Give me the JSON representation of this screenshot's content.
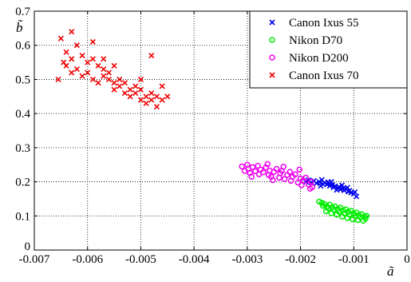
{
  "chart_data": {
    "type": "scatter",
    "title": "",
    "xlabel": "ã",
    "ylabel": "b̃",
    "xlim": [
      -0.007,
      0
    ],
    "ylim": [
      0,
      0.7
    ],
    "xticks": [
      -0.007,
      -0.006,
      -0.005,
      -0.004,
      -0.003,
      -0.002,
      -0.001,
      0
    ],
    "xtick_labels": [
      "-0.007",
      "-0.006",
      "-0.005",
      "-0.004",
      "-0.003",
      "-0.002",
      "-0.001",
      "0"
    ],
    "yticks": [
      0,
      0.1,
      0.2,
      0.3,
      0.4,
      0.5,
      0.6,
      0.7
    ],
    "ytick_labels": [
      "0",
      "0.1",
      "0.2",
      "0.3",
      "0.4",
      "0.5",
      "0.6",
      "0.7"
    ],
    "grid": true,
    "legend_position": "top-right",
    "series": [
      {
        "name": "Canon Ixus 55",
        "marker": "x",
        "color": "#0000ee",
        "points": [
          [
            -0.0019,
            0.2
          ],
          [
            -0.00185,
            0.205
          ],
          [
            -0.0018,
            0.198
          ],
          [
            -0.00175,
            0.203
          ],
          [
            -0.0017,
            0.196
          ],
          [
            -0.00165,
            0.2
          ],
          [
            -0.0016,
            0.206
          ],
          [
            -0.00158,
            0.193
          ],
          [
            -0.00155,
            0.197
          ],
          [
            -0.0015,
            0.192
          ],
          [
            -0.00148,
            0.199
          ],
          [
            -0.00145,
            0.188
          ],
          [
            -0.0014,
            0.191
          ],
          [
            -0.00138,
            0.184
          ],
          [
            -0.00135,
            0.187
          ],
          [
            -0.0013,
            0.182
          ],
          [
            -0.00128,
            0.185
          ],
          [
            -0.00125,
            0.178
          ],
          [
            -0.0012,
            0.18
          ],
          [
            -0.00118,
            0.175
          ],
          [
            -0.00115,
            0.179
          ],
          [
            -0.0011,
            0.171
          ],
          [
            -0.00108,
            0.174
          ],
          [
            -0.00105,
            0.168
          ],
          [
            -0.001,
            0.165
          ],
          [
            -0.00098,
            0.17
          ],
          [
            -0.00095,
            0.157
          ],
          [
            -0.00142,
            0.2
          ],
          [
            -0.00162,
            0.188
          ],
          [
            -0.00122,
            0.19
          ],
          [
            -0.00112,
            0.183
          ],
          [
            -0.00132,
            0.176
          ]
        ]
      },
      {
        "name": "Nikon D70",
        "marker": "o",
        "color": "#00ee00",
        "points": [
          [
            -0.00165,
            0.142
          ],
          [
            -0.0016,
            0.138
          ],
          [
            -0.00158,
            0.13
          ],
          [
            -0.00155,
            0.135
          ],
          [
            -0.0015,
            0.128
          ],
          [
            -0.00148,
            0.122
          ],
          [
            -0.00145,
            0.133
          ],
          [
            -0.0014,
            0.125
          ],
          [
            -0.00138,
            0.118
          ],
          [
            -0.00135,
            0.128
          ],
          [
            -0.0013,
            0.12
          ],
          [
            -0.00128,
            0.113
          ],
          [
            -0.00125,
            0.124
          ],
          [
            -0.0012,
            0.116
          ],
          [
            -0.00118,
            0.108
          ],
          [
            -0.00115,
            0.119
          ],
          [
            -0.0011,
            0.112
          ],
          [
            -0.00108,
            0.104
          ],
          [
            -0.00105,
            0.115
          ],
          [
            -0.001,
            0.107
          ],
          [
            -0.00098,
            0.1
          ],
          [
            -0.00095,
            0.11
          ],
          [
            -0.0009,
            0.102
          ],
          [
            -0.00088,
            0.096
          ],
          [
            -0.00085,
            0.105
          ],
          [
            -0.0008,
            0.098
          ],
          [
            -0.00078,
            0.092
          ],
          [
            -0.00076,
            0.1
          ],
          [
            -0.00152,
            0.114
          ],
          [
            -0.00142,
            0.108
          ],
          [
            -0.00132,
            0.104
          ],
          [
            -0.00122,
            0.098
          ],
          [
            -0.00112,
            0.094
          ],
          [
            -0.00102,
            0.09
          ],
          [
            -0.00092,
            0.088
          ],
          [
            -0.00082,
            0.086
          ]
        ]
      },
      {
        "name": "Nikon D200",
        "marker": "o",
        "color": "#ee00ee",
        "points": [
          [
            -0.0031,
            0.245
          ],
          [
            -0.00305,
            0.232
          ],
          [
            -0.003,
            0.25
          ],
          [
            -0.00298,
            0.238
          ],
          [
            -0.00295,
            0.226
          ],
          [
            -0.0029,
            0.243
          ],
          [
            -0.00285,
            0.231
          ],
          [
            -0.0028,
            0.247
          ],
          [
            -0.00278,
            0.222
          ],
          [
            -0.00275,
            0.236
          ],
          [
            -0.0027,
            0.228
          ],
          [
            -0.00265,
            0.242
          ],
          [
            -0.0026,
            0.22
          ],
          [
            -0.00258,
            0.233
          ],
          [
            -0.00255,
            0.215
          ],
          [
            -0.0025,
            0.229
          ],
          [
            -0.00245,
            0.238
          ],
          [
            -0.0024,
            0.212
          ],
          [
            -0.00238,
            0.225
          ],
          [
            -0.00235,
            0.232
          ],
          [
            -0.0023,
            0.208
          ],
          [
            -0.00225,
            0.22
          ],
          [
            -0.0022,
            0.229
          ],
          [
            -0.00218,
            0.203
          ],
          [
            -0.00215,
            0.215
          ],
          [
            -0.0021,
            0.222
          ],
          [
            -0.00205,
            0.198
          ],
          [
            -0.002,
            0.21
          ],
          [
            -0.00198,
            0.19
          ],
          [
            -0.00195,
            0.204
          ],
          [
            -0.0019,
            0.212
          ],
          [
            -0.00185,
            0.192
          ],
          [
            -0.0018,
            0.2
          ],
          [
            -0.00178,
            0.184
          ],
          [
            -0.00262,
            0.252
          ],
          [
            -0.00232,
            0.244
          ],
          [
            -0.00202,
            0.236
          ],
          [
            -0.00182,
            0.18
          ],
          [
            -0.00292,
            0.215
          ],
          [
            -0.00252,
            0.205
          ]
        ]
      },
      {
        "name": "Canon Ixus 70",
        "marker": "x",
        "color": "#ee0000",
        "points": [
          [
            -0.0065,
            0.62
          ],
          [
            -0.0064,
            0.58
          ],
          [
            -0.0063,
            0.64
          ],
          [
            -0.00645,
            0.55
          ],
          [
            -0.0064,
            0.54
          ],
          [
            -0.0063,
            0.56
          ],
          [
            -0.0062,
            0.6
          ],
          [
            -0.0062,
            0.53
          ],
          [
            -0.0061,
            0.57
          ],
          [
            -0.0061,
            0.51
          ],
          [
            -0.006,
            0.55
          ],
          [
            -0.006,
            0.52
          ],
          [
            -0.0059,
            0.56
          ],
          [
            -0.0059,
            0.5
          ],
          [
            -0.0058,
            0.54
          ],
          [
            -0.0058,
            0.49
          ],
          [
            -0.0057,
            0.53
          ],
          [
            -0.0057,
            0.51
          ],
          [
            -0.0056,
            0.5
          ],
          [
            -0.0056,
            0.52
          ],
          [
            -0.0055,
            0.49
          ],
          [
            -0.0055,
            0.47
          ],
          [
            -0.0054,
            0.5
          ],
          [
            -0.0054,
            0.48
          ],
          [
            -0.0053,
            0.46
          ],
          [
            -0.0053,
            0.49
          ],
          [
            -0.0052,
            0.47
          ],
          [
            -0.0052,
            0.45
          ],
          [
            -0.0051,
            0.48
          ],
          [
            -0.0051,
            0.46
          ],
          [
            -0.005,
            0.44
          ],
          [
            -0.005,
            0.47
          ],
          [
            -0.0049,
            0.45
          ],
          [
            -0.0049,
            0.43
          ],
          [
            -0.0048,
            0.46
          ],
          [
            -0.0048,
            0.44
          ],
          [
            -0.0047,
            0.45
          ],
          [
            -0.0047,
            0.42
          ],
          [
            -0.0046,
            0.44
          ],
          [
            -0.0046,
            0.48
          ],
          [
            -0.0048,
            0.57
          ],
          [
            -0.0045,
            0.45
          ],
          [
            -0.00655,
            0.5
          ],
          [
            -0.0059,
            0.61
          ],
          [
            -0.0057,
            0.56
          ],
          [
            -0.0055,
            0.54
          ],
          [
            -0.0063,
            0.52
          ],
          [
            -0.005,
            0.5
          ]
        ]
      }
    ]
  }
}
